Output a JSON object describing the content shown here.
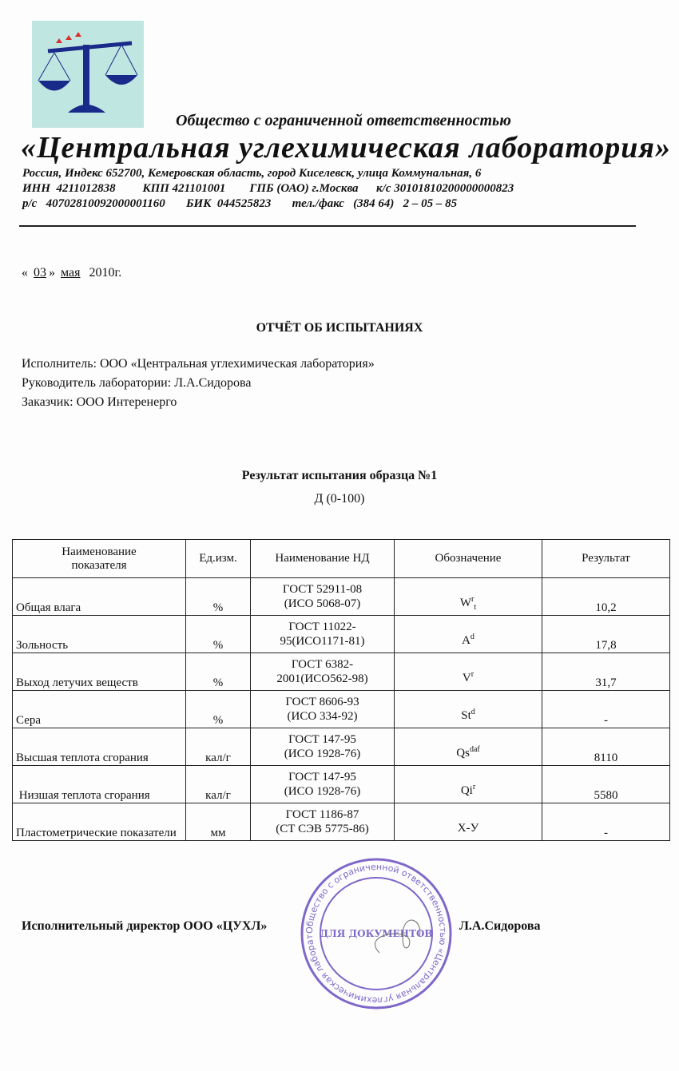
{
  "header": {
    "org_type": "Общество с ограниченной ответственностью",
    "org_name": "«Центральная  углехимическая  лаборатория»",
    "address": "Россия,   Индекс  652700,   Кемеровская область,   город Киселевск,   улица  Коммунальная, 6",
    "requisites_1": "ИНН  4211012838         КПП 421101001        ГПБ (ОАО) г.Москва      к/с 30101810200000000823",
    "requisites_2": "р/с   40702810092000001160       БИК  044525823       тел./факс   (384 64)   2 – 05 – 85"
  },
  "date": {
    "open": "«",
    "day": "03",
    "close": "»",
    "month": "мая",
    "year": "2010г."
  },
  "title": "ОТЧЁТ ОБ ИСПЫТАНИЯХ",
  "info": [
    "Исполнитель: ООО «Центральная углехимическая лаборатория»",
    "Руководитель лаборатории: Л.А.Сидорова",
    "Заказчик: ООО Интеренерго"
  ],
  "result_title": "Результат испытания образца №1",
  "sample": "Д (0-100)",
  "table": {
    "headers": [
      "Наименование показателя",
      "Ед.изм.",
      "Наименование НД",
      "Обозначение",
      "Результат"
    ],
    "rows": [
      {
        "name": "Общая влага",
        "unit": "%",
        "nd1": "ГОСТ 52911-08",
        "nd2": "(ИСО 5068-07)",
        "sym": "W",
        "sup": "r",
        "sub": "t",
        "result": "10,2"
      },
      {
        "name": "Зольность",
        "unit": "%",
        "nd1": "ГОСТ 11022-",
        "nd2": "95(ИСО1171-81)",
        "sym": "A",
        "sup": "d",
        "sub": "",
        "result": "17,8"
      },
      {
        "name": "Выход летучих веществ",
        "unit": "%",
        "nd1": "ГОСТ 6382-",
        "nd2": "2001(ИСО562-98)",
        "sym": "V",
        "sup": "r",
        "sub": "",
        "result": "31,7"
      },
      {
        "name": "Сера",
        "unit": "%",
        "nd1": "ГОСТ 8606-93",
        "nd2": "(ИСО 334-92)",
        "sym": "St",
        "sup": "d",
        "sub": "",
        "result": "-"
      },
      {
        "name": "Высшая теплота сгорания",
        "unit": "кал/г",
        "nd1": "ГОСТ 147-95",
        "nd2": "(ИСО 1928-76)",
        "sym": "Qs",
        "sup": "daf",
        "sub": "",
        "result": "8110"
      },
      {
        "name": " Низшая теплота сгорания",
        "unit": "кал/г",
        "nd1": "ГОСТ 147-95",
        "nd2": "(ИСО 1928-76)",
        "sym": "Qi",
        "sup": "r",
        "sub": "",
        "result": "5580"
      },
      {
        "name": "Пластометрические показатели",
        "unit": "мм",
        "nd1": "ГОСТ 1186-87",
        "nd2": "(СТ СЭВ 5775-86)",
        "sym": "Х-У",
        "sup": "",
        "sub": "",
        "result": "-"
      }
    ]
  },
  "signature": {
    "title": "Исполнительный директор ООО «ЦУХЛ»",
    "name": "Л.А.Сидорова"
  },
  "stamp": {
    "outer": "Общество с ограниченной ответственностью «Центральная углехимическая лаборатория» * Кемеровская обл. город Киселевск *",
    "center": "ДЛЯ ДОКУМЕНТОВ"
  },
  "colors": {
    "stamp": "#6a4fc0",
    "logo_bg": "#bfe6e0",
    "logo_scale": "#1a2a8a"
  }
}
